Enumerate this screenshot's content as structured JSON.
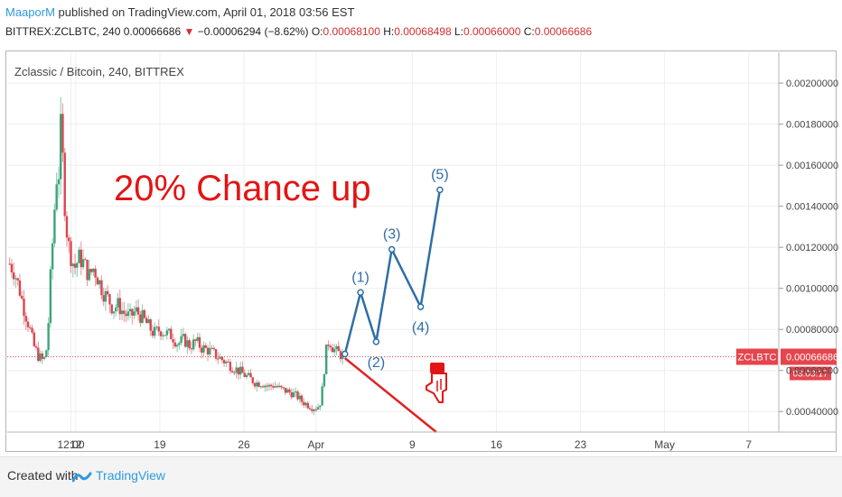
{
  "header": {
    "author": "MaaporM",
    "published": "published on TradingView.com, April 01, 2018 03:56 EST",
    "symbol": "BITTREX:ZCLBTC, 240",
    "last": "0.00066686",
    "change": "−0.00006294 (−8.62%)",
    "o_label": "O:",
    "o_value": "0.00068100",
    "h_label": "H:",
    "h_value": "0.00068498",
    "l_label": "L:",
    "l_value": "0.00066000",
    "c_label": "C:",
    "c_value": "0.00066686"
  },
  "footer": {
    "created_with": "Created with",
    "brand": "TradingView"
  },
  "colors": {
    "up": "#3aa57a",
    "down": "#d9474f",
    "wave": "#2f6ea6",
    "trend": "#e32020",
    "annotation": "#e31414",
    "last_price_bg": "#e5454d"
  },
  "chart_data": {
    "type": "candlestick",
    "title": "Zclassic / Bitcoin, 240, BITTREX",
    "annotation": "20% Chance up",
    "x_ticks": [
      {
        "label": "12:00",
        "x": 0.1
      },
      {
        "label": "12",
        "x": 0.5
      },
      {
        "label": "19",
        "x": 7.5
      },
      {
        "label": "26",
        "x": 14.5
      },
      {
        "label": "Apr",
        "x": 20.5
      },
      {
        "label": "9",
        "x": 28.5
      },
      {
        "label": "16",
        "x": 35.5
      },
      {
        "label": "23",
        "x": 42.5
      },
      {
        "label": "May",
        "x": 49.5
      },
      {
        "label": "7",
        "x": 56.5
      }
    ],
    "y_ticks": [
      0.0004,
      0.0006,
      0.0008,
      0.001,
      0.0012,
      0.0014,
      0.0016,
      0.0018,
      0.002
    ],
    "y_tick_labels": [
      "0.00040000",
      "0.00060000",
      "0.00080000",
      "0.00100000",
      "0.00120000",
      "0.00140000",
      "0.00160000",
      "0.00180000",
      "0.00200000"
    ],
    "ylim": [
      0.0003,
      0.00215
    ],
    "last_price": {
      "label": "ZCLBTC",
      "value": 0.00066686,
      "value_text": "0.00066686",
      "countdown": "03:03:17"
    },
    "price_path": [
      [
        -5.0,
        0.00112
      ],
      [
        -4.6,
        0.00108
      ],
      [
        -4.2,
        0.001
      ],
      [
        -3.8,
        0.0009
      ],
      [
        -3.4,
        0.00082
      ],
      [
        -3.0,
        0.00072
      ],
      [
        -2.6,
        0.00067
      ],
      [
        -2.3,
        0.00065
      ],
      [
        -2.0,
        0.00066
      ],
      [
        -1.8,
        0.0008
      ],
      [
        -1.6,
        0.00105
      ],
      [
        -1.4,
        0.00125
      ],
      [
        -1.2,
        0.00145
      ],
      [
        -1.0,
        0.00162
      ],
      [
        -0.9,
        0.00155
      ],
      [
        -0.8,
        0.00175
      ],
      [
        -0.7,
        0.0018
      ],
      [
        -0.6,
        0.00165
      ],
      [
        -0.4,
        0.0014
      ],
      [
        -0.2,
        0.00125
      ],
      [
        0.0,
        0.00118
      ],
      [
        0.4,
        0.0011
      ],
      [
        0.8,
        0.00115
      ],
      [
        1.2,
        0.00112
      ],
      [
        1.6,
        0.00106
      ],
      [
        2.0,
        0.0011
      ],
      [
        2.4,
        0.00104
      ],
      [
        2.8,
        0.00098
      ],
      [
        3.2,
        0.00095
      ],
      [
        3.6,
        0.0009
      ],
      [
        4.0,
        0.00092
      ],
      [
        4.5,
        0.00088
      ],
      [
        5.0,
        0.00086
      ],
      [
        5.5,
        0.00089
      ],
      [
        6.0,
        0.00086
      ],
      [
        6.5,
        0.00082
      ],
      [
        7.0,
        0.00078
      ],
      [
        7.5,
        0.0008
      ],
      [
        8.0,
        0.00078
      ],
      [
        8.5,
        0.00077
      ],
      [
        9.0,
        0.00073
      ],
      [
        9.5,
        0.00075
      ],
      [
        10.0,
        0.00072
      ],
      [
        10.5,
        0.00074
      ],
      [
        11.0,
        0.00071
      ],
      [
        11.5,
        0.0007
      ],
      [
        12.0,
        0.00068
      ],
      [
        12.5,
        0.00066
      ],
      [
        13.0,
        0.00064
      ],
      [
        13.5,
        0.00062
      ],
      [
        14.0,
        0.0006
      ],
      [
        14.5,
        0.00058
      ],
      [
        15.0,
        0.00056
      ],
      [
        15.5,
        0.00054
      ],
      [
        16.0,
        0.00054
      ],
      [
        16.5,
        0.00052
      ],
      [
        17.0,
        0.00053
      ],
      [
        17.5,
        0.00051
      ],
      [
        18.0,
        0.0005
      ],
      [
        18.5,
        0.00049
      ],
      [
        19.0,
        0.00047
      ],
      [
        19.3,
        0.00045
      ],
      [
        19.6,
        0.00044
      ],
      [
        19.9,
        0.00043
      ],
      [
        20.2,
        0.00042
      ],
      [
        20.5,
        0.00042
      ],
      [
        20.8,
        0.00043
      ],
      [
        21.0,
        0.0005
      ],
      [
        21.2,
        0.00062
      ],
      [
        21.4,
        0.00072
      ],
      [
        21.6,
        0.00075
      ],
      [
        21.9,
        0.00071
      ],
      [
        22.2,
        0.00069
      ],
      [
        22.5,
        0.00068
      ],
      [
        22.8,
        0.000667
      ]
    ],
    "wave_points": [
      {
        "label": "",
        "x": 22.9,
        "y": 0.00068
      },
      {
        "label": "(1)",
        "x": 24.2,
        "y": 0.00098
      },
      {
        "label": "(2)",
        "x": 25.5,
        "y": 0.00074
      },
      {
        "label": "(3)",
        "x": 26.8,
        "y": 0.00119
      },
      {
        "label": "(4)",
        "x": 29.2,
        "y": 0.00091
      },
      {
        "label": "(5)",
        "x": 30.8,
        "y": 0.00148
      }
    ],
    "trend_line": {
      "x1": 22.9,
      "y1": 0.00066,
      "x2": 30.5,
      "y2": 0.0003
    }
  }
}
